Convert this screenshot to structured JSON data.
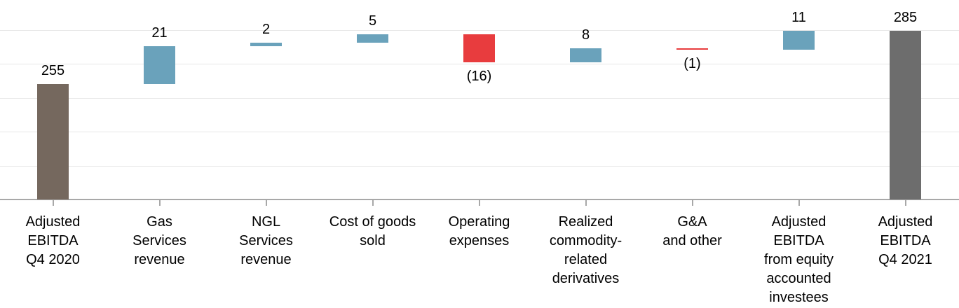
{
  "chart_data": {
    "type": "bar",
    "subtype": "waterfall",
    "title": "",
    "xlabel": "",
    "ylabel": "",
    "categories": [
      "Adjusted\nEBITDA\nQ4 2020",
      "Gas\nServices\nrevenue",
      "NGL\nServices\nrevenue",
      "Cost of goods\nsold",
      "Operating\nexpenses",
      "Realized\ncommodity-\nrelated\nderivatives",
      "G&A\nand other",
      "Adjusted\nEBITDA\nfrom equity\naccounted\ninvestees",
      "Adjusted\nEBITDA\nQ4 2021"
    ],
    "values": [
      255,
      21,
      2,
      5,
      -16,
      8,
      -1,
      11,
      285
    ],
    "data_labels": [
      "255",
      "21",
      "2",
      "5",
      "(16)",
      "8",
      "(1)",
      "11",
      "285"
    ],
    "bar_roles": [
      "total_start",
      "increase",
      "increase",
      "increase",
      "decrease",
      "increase",
      "decrease",
      "increase",
      "total_end"
    ],
    "cumulative": [
      255,
      276,
      278,
      283,
      267,
      275,
      274,
      285,
      285
    ],
    "axis": {
      "y_min": 190,
      "y_max": 285,
      "gridlines_visible": true,
      "gridline_count": 5,
      "x_tick_marks": "below-axis-at-category-centers"
    },
    "legend_position": "none",
    "colors": {
      "total_start": "#75685E",
      "increase": "#6AA2BB",
      "decrease": "#E83C3E",
      "total_end": "#6D6D6D",
      "gridline": "#E7E7E7",
      "axis_line": "#A8A8A8",
      "label_text": "#000000",
      "background": "#FFFFFF"
    }
  }
}
